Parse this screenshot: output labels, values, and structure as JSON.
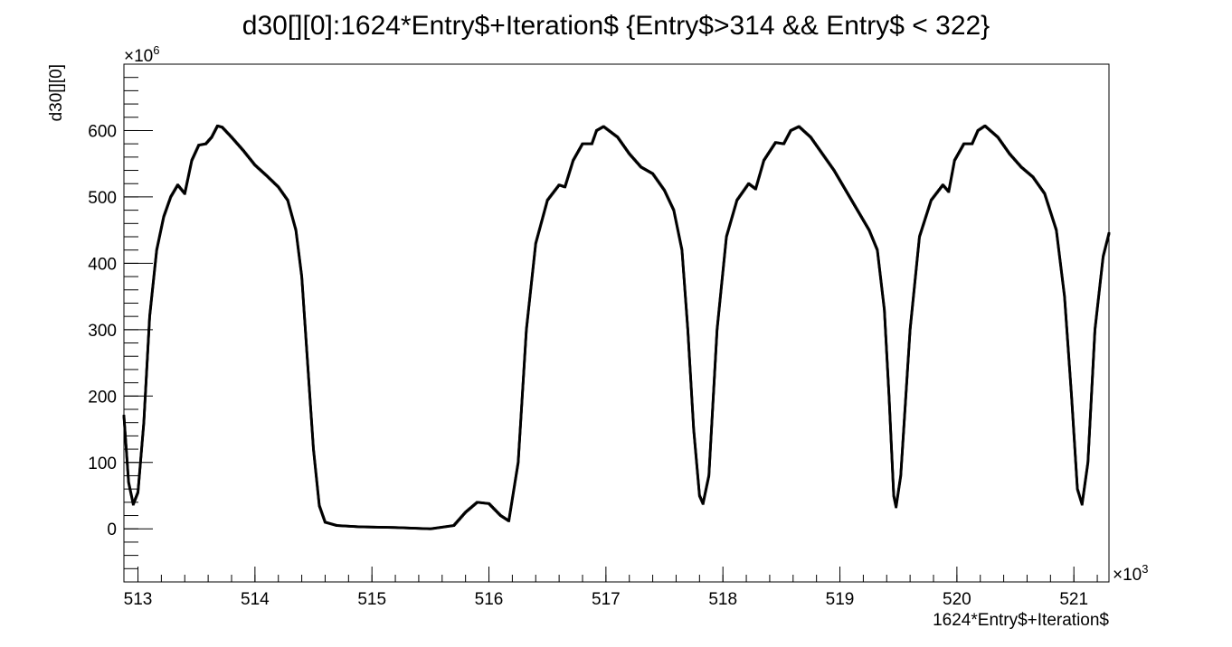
{
  "chart_data": {
    "type": "scatter",
    "title": "d30[][0]:1624*Entry$+Iteration$ {Entry$>314 && Entry$ < 322}",
    "xlabel": "1624*Entry$+Iteration$",
    "ylabel": "d30[][0]",
    "x_multiplier": "×10",
    "x_multiplier_exp": "3",
    "y_multiplier": "×10",
    "y_multiplier_exp": "6",
    "xlim": [
      512.88,
      521.3
    ],
    "ylim": [
      -80,
      700
    ],
    "x_ticks": [
      "513",
      "514",
      "515",
      "516",
      "517",
      "518",
      "519",
      "520",
      "521"
    ],
    "y_ticks": [
      "0",
      "100",
      "200",
      "300",
      "400",
      "500",
      "600"
    ],
    "grid": false,
    "legend": "none",
    "marker_color": "#000000",
    "series": [
      {
        "x_unit": "×10^3",
        "y_unit": "×10^6",
        "points": [
          [
            512.88,
            170
          ],
          [
            512.92,
            70
          ],
          [
            512.96,
            37
          ],
          [
            513.0,
            55
          ],
          [
            513.05,
            160
          ],
          [
            513.1,
            320
          ],
          [
            513.16,
            420
          ],
          [
            513.22,
            470
          ],
          [
            513.28,
            500
          ],
          [
            513.34,
            518
          ],
          [
            513.4,
            505
          ],
          [
            513.46,
            555
          ],
          [
            513.52,
            578
          ],
          [
            513.58,
            580
          ],
          [
            513.63,
            590
          ],
          [
            513.68,
            607
          ],
          [
            513.72,
            605
          ],
          [
            513.8,
            590
          ],
          [
            513.9,
            570
          ],
          [
            514.0,
            548
          ],
          [
            514.1,
            532
          ],
          [
            514.2,
            515
          ],
          [
            514.28,
            495
          ],
          [
            514.35,
            450
          ],
          [
            514.4,
            380
          ],
          [
            514.45,
            250
          ],
          [
            514.5,
            120
          ],
          [
            514.55,
            35
          ],
          [
            514.6,
            10
          ],
          [
            514.7,
            5
          ],
          [
            514.9,
            3
          ],
          [
            515.2,
            2
          ],
          [
            515.5,
            0
          ],
          [
            515.7,
            5
          ],
          [
            515.8,
            25
          ],
          [
            515.9,
            40
          ],
          [
            516.0,
            38
          ],
          [
            516.1,
            20
          ],
          [
            516.17,
            12
          ],
          [
            516.25,
            100
          ],
          [
            516.32,
            300
          ],
          [
            516.4,
            430
          ],
          [
            516.5,
            495
          ],
          [
            516.6,
            518
          ],
          [
            516.65,
            515
          ],
          [
            516.72,
            555
          ],
          [
            516.8,
            580
          ],
          [
            516.88,
            580
          ],
          [
            516.92,
            600
          ],
          [
            516.98,
            606
          ],
          [
            517.1,
            590
          ],
          [
            517.2,
            565
          ],
          [
            517.3,
            545
          ],
          [
            517.4,
            535
          ],
          [
            517.5,
            510
          ],
          [
            517.58,
            480
          ],
          [
            517.65,
            420
          ],
          [
            517.7,
            300
          ],
          [
            517.75,
            150
          ],
          [
            517.8,
            50
          ],
          [
            517.83,
            38
          ],
          [
            517.88,
            80
          ],
          [
            517.95,
            300
          ],
          [
            518.03,
            440
          ],
          [
            518.12,
            495
          ],
          [
            518.22,
            520
          ],
          [
            518.28,
            512
          ],
          [
            518.35,
            555
          ],
          [
            518.45,
            582
          ],
          [
            518.52,
            580
          ],
          [
            518.58,
            600
          ],
          [
            518.65,
            606
          ],
          [
            518.75,
            590
          ],
          [
            518.85,
            565
          ],
          [
            518.95,
            540
          ],
          [
            519.05,
            510
          ],
          [
            519.15,
            480
          ],
          [
            519.25,
            450
          ],
          [
            519.32,
            420
          ],
          [
            519.38,
            330
          ],
          [
            519.42,
            200
          ],
          [
            519.46,
            50
          ],
          [
            519.48,
            33
          ],
          [
            519.52,
            80
          ],
          [
            519.6,
            300
          ],
          [
            519.68,
            440
          ],
          [
            519.78,
            495
          ],
          [
            519.88,
            518
          ],
          [
            519.93,
            508
          ],
          [
            519.98,
            555
          ],
          [
            520.06,
            580
          ],
          [
            520.13,
            580
          ],
          [
            520.18,
            600
          ],
          [
            520.24,
            607
          ],
          [
            520.35,
            590
          ],
          [
            520.45,
            565
          ],
          [
            520.55,
            545
          ],
          [
            520.65,
            530
          ],
          [
            520.75,
            505
          ],
          [
            520.85,
            450
          ],
          [
            520.92,
            350
          ],
          [
            520.98,
            200
          ],
          [
            521.03,
            60
          ],
          [
            521.07,
            37
          ],
          [
            521.12,
            100
          ],
          [
            521.18,
            300
          ],
          [
            521.25,
            410
          ],
          [
            521.3,
            445
          ]
        ]
      }
    ]
  }
}
